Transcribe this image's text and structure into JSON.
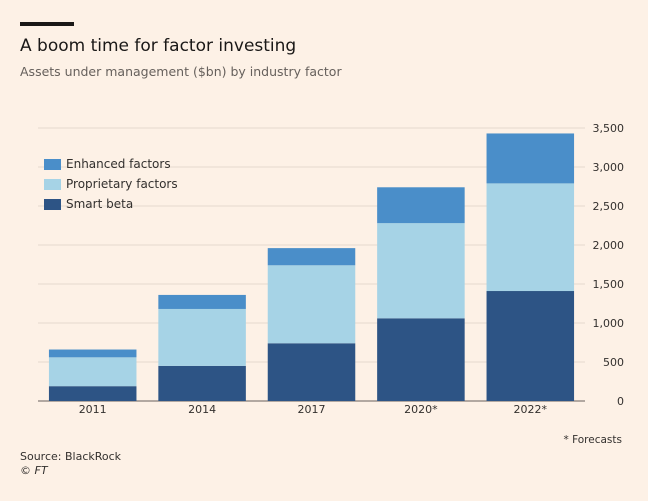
{
  "header": {
    "title": "A boom time for factor investing",
    "subtitle": "Assets under management ($bn) by industry factor"
  },
  "legend": [
    {
      "label": "Enhanced factors",
      "color": "#4a8ec9"
    },
    {
      "label": "Proprietary factors",
      "color": "#a6d3e6"
    },
    {
      "label": "Smart beta",
      "color": "#2d5485"
    }
  ],
  "chart_data": {
    "type": "bar",
    "stacked": true,
    "categories": [
      "2011",
      "2014",
      "2017",
      "2020*",
      "2022*"
    ],
    "series": [
      {
        "name": "Smart beta",
        "color": "#2d5485",
        "values": [
          190,
          450,
          740,
          1060,
          1410
        ]
      },
      {
        "name": "Proprietary factors",
        "color": "#a6d3e6",
        "values": [
          370,
          730,
          1000,
          1220,
          1380
        ]
      },
      {
        "name": "Enhanced factors",
        "color": "#4a8ec9",
        "values": [
          100,
          180,
          220,
          460,
          640
        ]
      }
    ],
    "ylim": [
      0,
      3500
    ],
    "yticks": [
      "0",
      "500",
      "1,000",
      "1,500",
      "2,000",
      "2,500",
      "3,000",
      "3,500"
    ],
    "ytick_values": [
      0,
      500,
      1000,
      1500,
      2000,
      2500,
      3000,
      3500
    ],
    "gridlines": true,
    "axis_side": "right",
    "legend_position": "top-left"
  },
  "footnote": "* Forecasts",
  "source": "Source: BlackRock",
  "copyright": "© FT"
}
